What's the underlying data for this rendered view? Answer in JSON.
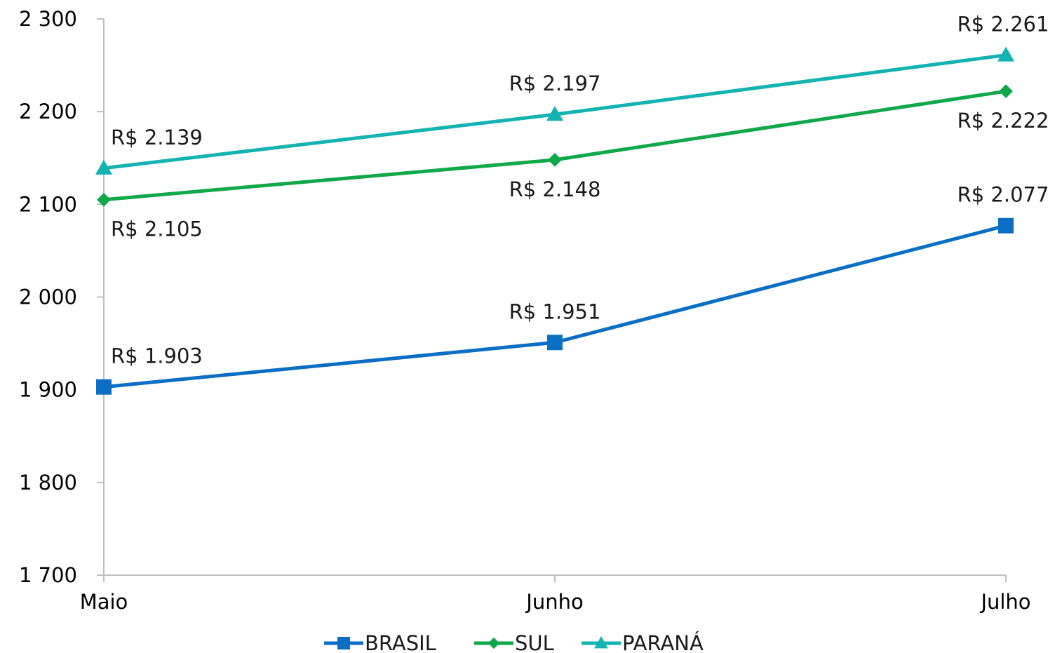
{
  "chart_data": {
    "type": "line",
    "categories": [
      "Maio",
      "Junho",
      "Julho"
    ],
    "ylim": [
      1700,
      2300
    ],
    "yticks": [
      1700,
      1800,
      1900,
      2000,
      2100,
      2200,
      2300
    ],
    "ytick_labels": [
      "1 700",
      "1 800",
      "1 900",
      "2 000",
      "2 100",
      "2 200",
      "2 300"
    ],
    "grid": false,
    "legend_position": "bottom",
    "series": [
      {
        "name": "BRASIL",
        "values": [
          1903,
          1951,
          2077
        ],
        "labels": [
          "R$ 1.903",
          "R$ 1.951",
          "R$ 2.077"
        ],
        "label_positions": [
          "above",
          "above",
          "above"
        ],
        "color": "#0a6fc4",
        "marker": "square"
      },
      {
        "name": "SUL",
        "values": [
          2105,
          2148,
          2222
        ],
        "labels": [
          "R$ 2.105",
          "R$ 2.148",
          "R$ 2.222"
        ],
        "label_positions": [
          "below",
          "below",
          "below"
        ],
        "color": "#11a84a",
        "marker": "diamond"
      },
      {
        "name": "PARANÁ",
        "values": [
          2139,
          2197,
          2261
        ],
        "labels": [
          "R$ 2.139",
          "R$ 2.197",
          "R$ 2.261"
        ],
        "label_positions": [
          "above",
          "above",
          "above"
        ],
        "color": "#12b3b0",
        "marker": "triangle"
      }
    ]
  }
}
